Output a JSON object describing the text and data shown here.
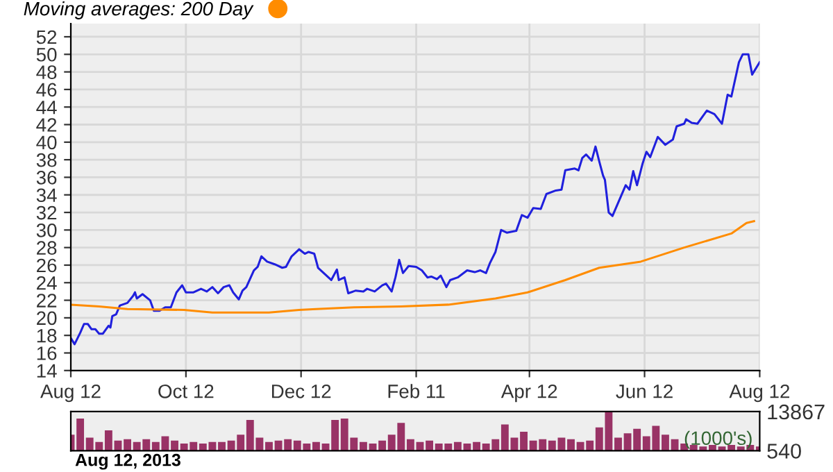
{
  "chart_data": [
    {
      "type": "line",
      "legend": "top left",
      "grid": true,
      "ylim": [
        14,
        53.5
      ],
      "yticks": [
        14,
        16,
        18,
        20,
        22,
        24,
        26,
        28,
        30,
        32,
        34,
        36,
        38,
        40,
        42,
        44,
        46,
        48,
        50,
        52
      ],
      "xlim": [
        "2012-08-12",
        "2013-08-12"
      ],
      "xticks": [
        {
          "value": "2012-08-12",
          "label": "Aug 12"
        },
        {
          "value": "2012-10-12",
          "label": "Oct 12"
        },
        {
          "value": "2012-12-12",
          "label": "Dec 12"
        },
        {
          "value": "2013-02-11",
          "label": "Feb 11"
        },
        {
          "value": "2013-04-12",
          "label": "Apr 12"
        },
        {
          "value": "2013-06-12",
          "label": "Jun 12"
        },
        {
          "value": "2013-08-12",
          "label": "Aug 12"
        }
      ],
      "series": [
        {
          "color": "#2020dd",
          "x": [
            "2012-08-12",
            "2012-08-14",
            "2012-08-17",
            "2012-08-19",
            "2012-08-21",
            "2012-08-23",
            "2012-08-25",
            "2012-08-27",
            "2012-08-29",
            "2012-09-01",
            "2012-09-02",
            "2012-09-03",
            "2012-09-05",
            "2012-09-07",
            "2012-09-11",
            "2012-09-14",
            "2012-09-15",
            "2012-09-16",
            "2012-09-19",
            "2012-09-23",
            "2012-09-25",
            "2012-09-28",
            "2012-10-01",
            "2012-10-04",
            "2012-10-07",
            "2012-10-10",
            "2012-10-12",
            "2012-10-16",
            "2012-10-20",
            "2012-10-23",
            "2012-10-26",
            "2012-10-29",
            "2012-11-01",
            "2012-11-04",
            "2012-11-06",
            "2012-11-09",
            "2012-11-11",
            "2012-11-13",
            "2012-11-17",
            "2012-11-19",
            "2012-11-21",
            "2012-11-24",
            "2012-11-28",
            "2012-11-30",
            "2012-12-02",
            "2012-12-04",
            "2012-12-07",
            "2012-12-11",
            "2012-12-14",
            "2012-12-16",
            "2012-12-19",
            "2012-12-21",
            "2012-12-25",
            "2012-12-28",
            "2012-12-31",
            "2013-01-01",
            "2013-01-04",
            "2013-01-06",
            "2013-01-10",
            "2013-01-14",
            "2013-01-16",
            "2013-01-20",
            "2013-01-24",
            "2013-01-26",
            "2013-01-29",
            "2013-01-31",
            "2013-02-02",
            "2013-02-04",
            "2013-02-07",
            "2013-02-11",
            "2013-02-14",
            "2013-02-17",
            "2013-02-19",
            "2013-02-22",
            "2013-02-24",
            "2013-02-27",
            "2013-03-01",
            "2013-03-05",
            "2013-03-10",
            "2013-03-14",
            "2013-03-17",
            "2013-03-20",
            "2013-03-22",
            "2013-03-25",
            "2013-03-28",
            "2013-03-31",
            "2013-04-05",
            "2013-04-08",
            "2013-04-11",
            "2013-04-14",
            "2013-04-18",
            "2013-04-21",
            "2013-04-26",
            "2013-04-29",
            "2013-05-01",
            "2013-05-06",
            "2013-05-08",
            "2013-05-10",
            "2013-05-12",
            "2013-05-15",
            "2013-05-17",
            "2013-05-19",
            "2013-05-21",
            "2013-05-22",
            "2013-05-24",
            "2013-05-26",
            "2013-05-29",
            "2013-06-02",
            "2013-06-04",
            "2013-06-06",
            "2013-06-08",
            "2013-06-11",
            "2013-06-13",
            "2013-06-15",
            "2013-06-19",
            "2013-06-23",
            "2013-06-27",
            "2013-06-29",
            "2013-07-03",
            "2013-07-04",
            "2013-07-07",
            "2013-07-10",
            "2013-07-15",
            "2013-07-19",
            "2013-07-23",
            "2013-07-26",
            "2013-07-28",
            "2013-08-01",
            "2013-08-03",
            "2013-08-06",
            "2013-08-08",
            "2013-08-12"
          ],
          "values": [
            17.7,
            17.0,
            18.3,
            19.3,
            19.3,
            18.7,
            18.7,
            18.2,
            18.2,
            19.1,
            18.9,
            20.2,
            20.4,
            21.4,
            21.7,
            22.5,
            22.9,
            22.2,
            22.7,
            22.0,
            20.8,
            20.8,
            21.2,
            21.2,
            22.9,
            23.7,
            22.9,
            22.9,
            23.3,
            23.0,
            23.5,
            22.8,
            23.5,
            23.7,
            22.9,
            22.1,
            23.1,
            23.5,
            25.4,
            25.8,
            27.0,
            26.4,
            26.1,
            25.9,
            25.7,
            25.8,
            27.0,
            27.8,
            27.3,
            27.5,
            27.3,
            25.7,
            24.9,
            24.3,
            25.5,
            24.3,
            24.6,
            22.8,
            23.1,
            23.0,
            23.3,
            23.0,
            23.7,
            23.9,
            23.0,
            24.6,
            26.6,
            25.1,
            25.9,
            25.8,
            25.4,
            24.6,
            24.7,
            24.4,
            24.8,
            23.5,
            24.3,
            24.6,
            25.4,
            25.2,
            25.4,
            25.1,
            26.2,
            27.5,
            30.0,
            29.7,
            29.9,
            31.7,
            31.4,
            32.5,
            32.4,
            34.1,
            34.5,
            34.6,
            36.8,
            37.0,
            36.8,
            38.2,
            38.6,
            37.9,
            39.5,
            37.8,
            36.2,
            35.7,
            32.0,
            31.6,
            33.1,
            35.1,
            34.6,
            36.7,
            35.1,
            37.6,
            38.9,
            38.3,
            40.6,
            39.7,
            40.3,
            41.8,
            42.1,
            42.6,
            42.2,
            42.1,
            43.6,
            43.2,
            42.1,
            45.4,
            45.2,
            49.1,
            50.0,
            50.0,
            47.7,
            49.1
          ]
        },
        {
          "name": "Moving averages: 200 Day",
          "color": "#ff8c00",
          "x": [
            "2012-08-12",
            "2012-08-27",
            "2012-09-11",
            "2012-10-11",
            "2012-10-26",
            "2012-11-25",
            "2012-12-11",
            "2012-12-20",
            "2013-01-09",
            "2013-02-03",
            "2013-02-28",
            "2013-03-25",
            "2013-04-11",
            "2013-05-01",
            "2013-05-19",
            "2013-06-10",
            "2013-07-03",
            "2013-07-28",
            "2013-08-05",
            "2013-08-09"
          ],
          "values": [
            21.5,
            21.3,
            21.0,
            20.9,
            20.6,
            20.6,
            20.9,
            21.0,
            21.2,
            21.3,
            21.5,
            22.2,
            22.9,
            24.3,
            25.7,
            26.4,
            28.0,
            29.6,
            30.8,
            31.0
          ]
        }
      ]
    },
    {
      "type": "bar",
      "tick_labels": "y",
      "grid": false,
      "ylim": [
        540,
        13867
      ],
      "yticks": [
        540,
        13867
      ],
      "xlim": [
        "2012-08-12",
        "2013-08-12"
      ],
      "annotations": [
        "(1000's)",
        "Aug 12, 2013"
      ],
      "series": [
        {
          "color": "#993366",
          "x": [
            "2012-08-12",
            "2012-08-17",
            "2012-08-22",
            "2012-08-27",
            "2012-09-01",
            "2012-09-06",
            "2012-09-11",
            "2012-09-16",
            "2012-09-21",
            "2012-09-26",
            "2012-10-01",
            "2012-10-06",
            "2012-10-11",
            "2012-10-16",
            "2012-10-21",
            "2012-10-26",
            "2012-10-31",
            "2012-11-05",
            "2012-11-10",
            "2012-11-15",
            "2012-11-20",
            "2012-11-25",
            "2012-11-30",
            "2012-12-05",
            "2012-12-10",
            "2012-12-15",
            "2012-12-20",
            "2012-12-25",
            "2012-12-30",
            "2013-01-04",
            "2013-01-09",
            "2013-01-14",
            "2013-01-19",
            "2013-01-24",
            "2013-01-29",
            "2013-02-03",
            "2013-02-08",
            "2013-02-13",
            "2013-02-18",
            "2013-02-23",
            "2013-02-28",
            "2013-03-05",
            "2013-03-10",
            "2013-03-15",
            "2013-03-20",
            "2013-03-25",
            "2013-03-30",
            "2013-04-04",
            "2013-04-09",
            "2013-04-14",
            "2013-04-19",
            "2013-04-24",
            "2013-04-29",
            "2013-05-04",
            "2013-05-09",
            "2013-05-14",
            "2013-05-19",
            "2013-05-24",
            "2013-05-29",
            "2013-06-03",
            "2013-06-08",
            "2013-06-13",
            "2013-06-18",
            "2013-06-23",
            "2013-06-28",
            "2013-07-03",
            "2013-07-08",
            "2013-07-13",
            "2013-07-18",
            "2013-07-23",
            "2013-07-28",
            "2013-08-02",
            "2013-08-07",
            "2013-08-12"
          ],
          "values": [
            6000,
            11500,
            5000,
            3500,
            7500,
            4000,
            4500,
            3500,
            4500,
            3500,
            5500,
            4000,
            3000,
            3500,
            3000,
            3500,
            3500,
            4000,
            6000,
            11000,
            5000,
            3500,
            4000,
            4500,
            4000,
            3000,
            3500,
            3000,
            11000,
            11500,
            5000,
            3500,
            3000,
            4000,
            6000,
            10000,
            4500,
            3500,
            4000,
            3000,
            3000,
            3500,
            3000,
            3500,
            3000,
            4500,
            9500,
            5000,
            7000,
            4000,
            4500,
            4000,
            5000,
            4500,
            3500,
            4000,
            8500,
            13867,
            5000,
            6500,
            8000,
            5500,
            9000,
            6000,
            4500,
            3000,
            2500,
            2000,
            2500,
            2000,
            2500,
            2000,
            2500,
            2000
          ]
        }
      ]
    }
  ]
}
